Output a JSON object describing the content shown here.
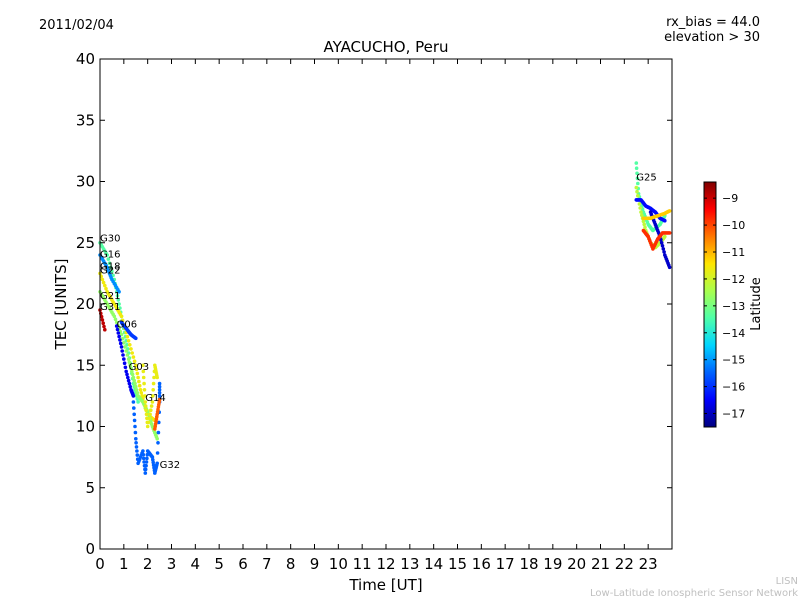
{
  "header": {
    "date": "2011/02/04",
    "rx_bias": "rx_bias = 44.0",
    "elevation": "elevation > 30"
  },
  "footer": {
    "line1": "LISN",
    "line2": "Low-Latitude Ionospheric Sensor Network"
  },
  "colors": {
    "axis": "#000000",
    "colormap": [
      "#00007f",
      "#0000ff",
      "#0063ff",
      "#00d5ff",
      "#4effa9",
      "#a9ff4e",
      "#ffe600",
      "#ff7700",
      "#ff0000",
      "#7f0000"
    ]
  },
  "chart_data": {
    "type": "scatter",
    "title": "AYACUCHO, Peru",
    "xlabel": "Time [UT]",
    "ylabel": "TEC [UNITS]",
    "xlim": [
      0,
      24
    ],
    "ylim": [
      0,
      40
    ],
    "xticks": [
      0,
      1,
      2,
      3,
      4,
      5,
      6,
      7,
      8,
      9,
      10,
      11,
      12,
      13,
      14,
      15,
      16,
      17,
      18,
      19,
      20,
      21,
      22,
      23
    ],
    "yticks": [
      0,
      5,
      10,
      15,
      20,
      25,
      30,
      35,
      40
    ],
    "colorbar": {
      "label": "Latitude",
      "range": [
        -17.5,
        -8.4
      ],
      "ticks": [
        -9,
        -10,
        -11,
        -12,
        -13,
        -14,
        -15,
        -16,
        -17
      ]
    },
    "satellite_labels": [
      {
        "text": "G30",
        "x": 0.0,
        "y": 25.1
      },
      {
        "text": "G16",
        "x": 0.0,
        "y": 23.8
      },
      {
        "text": "G18",
        "x": 0.0,
        "y": 22.8
      },
      {
        "text": "G22",
        "x": 0.0,
        "y": 22.5
      },
      {
        "text": "G21",
        "x": 0.0,
        "y": 20.4
      },
      {
        "text": "G31",
        "x": 0.0,
        "y": 19.5
      },
      {
        "text": "G06",
        "x": 0.7,
        "y": 18.1
      },
      {
        "text": "G03",
        "x": 1.2,
        "y": 14.6
      },
      {
        "text": "G14",
        "x": 1.9,
        "y": 12.1
      },
      {
        "text": "G32",
        "x": 2.5,
        "y": 6.6
      },
      {
        "text": "G25",
        "x": 22.5,
        "y": 30.1
      }
    ],
    "series": [
      {
        "lat": -8.9,
        "points": [
          [
            0.0,
            19.5
          ],
          [
            0.2,
            17.9
          ]
        ]
      },
      {
        "lat": -13.4,
        "points": [
          [
            0.0,
            25.0
          ],
          [
            0.3,
            24.0
          ],
          [
            0.6,
            22.0
          ],
          [
            0.8,
            20.0
          ],
          [
            1.0,
            18.0
          ],
          [
            1.2,
            16.0
          ],
          [
            1.4,
            13.5
          ],
          [
            1.6,
            12.0
          ]
        ]
      },
      {
        "lat": -15.1,
        "points": [
          [
            0.0,
            24.0
          ],
          [
            0.3,
            23.0
          ],
          [
            0.5,
            22.0
          ],
          [
            0.8,
            21.0
          ]
        ]
      },
      {
        "lat": -11.6,
        "points": [
          [
            0.0,
            22.5
          ],
          [
            0.3,
            21.0
          ],
          [
            0.6,
            20.0
          ],
          [
            0.9,
            19.0
          ],
          [
            1.2,
            17.0
          ],
          [
            1.5,
            15.0
          ],
          [
            1.7,
            13.0
          ],
          [
            1.9,
            11.5
          ],
          [
            2.1,
            10.8
          ],
          [
            2.3,
            10.5
          ]
        ]
      },
      {
        "lat": -12.7,
        "points": [
          [
            0.0,
            21.0
          ],
          [
            0.3,
            20.0
          ],
          [
            0.6,
            19.0
          ],
          [
            0.9,
            17.5
          ],
          [
            1.2,
            15.5
          ],
          [
            1.4,
            14.0
          ],
          [
            1.6,
            12.5
          ],
          [
            1.8,
            12.0
          ],
          [
            2.0,
            11.2
          ],
          [
            2.2,
            10.0
          ],
          [
            2.4,
            9.0
          ]
        ]
      },
      {
        "lat": -16.6,
        "points": [
          [
            0.7,
            18.2
          ],
          [
            0.9,
            16.5
          ],
          [
            1.1,
            14.5
          ],
          [
            1.3,
            13.0
          ],
          [
            1.4,
            12.5
          ]
        ]
      },
      {
        "lat": -15.9,
        "points": [
          [
            0.9,
            18.5
          ],
          [
            1.1,
            18.0
          ],
          [
            1.3,
            17.5
          ],
          [
            1.5,
            17.2
          ]
        ]
      },
      {
        "lat": -15.5,
        "points": [
          [
            1.4,
            12.0
          ],
          [
            1.5,
            9.0
          ],
          [
            1.6,
            7.0
          ],
          [
            1.8,
            8.0
          ],
          [
            1.9,
            6.2
          ],
          [
            2.0,
            8.0
          ],
          [
            2.2,
            7.5
          ],
          [
            2.3,
            6.2
          ],
          [
            2.4,
            7.0
          ],
          [
            2.5,
            12.0
          ],
          [
            2.5,
            13.5
          ]
        ]
      },
      {
        "lat": -11.7,
        "points": [
          [
            1.8,
            15.0
          ],
          [
            1.9,
            12.0
          ],
          [
            2.0,
            10.0
          ],
          [
            2.2,
            12.0
          ],
          [
            2.3,
            15.0
          ],
          [
            2.4,
            14.0
          ]
        ]
      },
      {
        "lat": -10.2,
        "points": [
          [
            2.3,
            9.8
          ],
          [
            2.4,
            11.0
          ],
          [
            2.5,
            12.2
          ]
        ]
      },
      {
        "lat": -13.4,
        "points": [
          [
            22.5,
            31.5
          ],
          [
            22.6,
            29.0
          ],
          [
            22.8,
            27.5
          ],
          [
            23.0,
            26.5
          ],
          [
            23.2,
            26.0
          ],
          [
            23.5,
            26.5
          ],
          [
            23.7,
            27.2
          ]
        ]
      },
      {
        "lat": -12.2,
        "points": [
          [
            22.5,
            29.5
          ],
          [
            22.7,
            27.5
          ],
          [
            22.9,
            26.0
          ],
          [
            23.1,
            25.0
          ],
          [
            23.3,
            24.6
          ],
          [
            23.5,
            25.0
          ],
          [
            23.7,
            25.5
          ]
        ]
      },
      {
        "lat": -16.4,
        "points": [
          [
            22.5,
            28.5
          ],
          [
            22.7,
            28.5
          ],
          [
            22.9,
            28.0
          ],
          [
            23.1,
            27.8
          ],
          [
            23.3,
            27.5
          ],
          [
            23.5,
            27.0
          ],
          [
            23.7,
            26.8
          ]
        ]
      },
      {
        "lat": -16.9,
        "points": [
          [
            23.1,
            27.5
          ],
          [
            23.3,
            26.5
          ],
          [
            23.5,
            25.5
          ],
          [
            23.7,
            24.0
          ],
          [
            23.9,
            23.0
          ]
        ]
      },
      {
        "lat": -11.2,
        "points": [
          [
            22.8,
            27.0
          ],
          [
            23.1,
            27.0
          ],
          [
            23.4,
            27.2
          ],
          [
            23.7,
            27.4
          ],
          [
            23.9,
            27.6
          ]
        ]
      },
      {
        "lat": -9.8,
        "points": [
          [
            22.8,
            26.0
          ],
          [
            23.0,
            25.5
          ],
          [
            23.2,
            24.5
          ],
          [
            23.4,
            25.3
          ],
          [
            23.6,
            25.8
          ],
          [
            23.9,
            25.8
          ]
        ]
      }
    ]
  }
}
